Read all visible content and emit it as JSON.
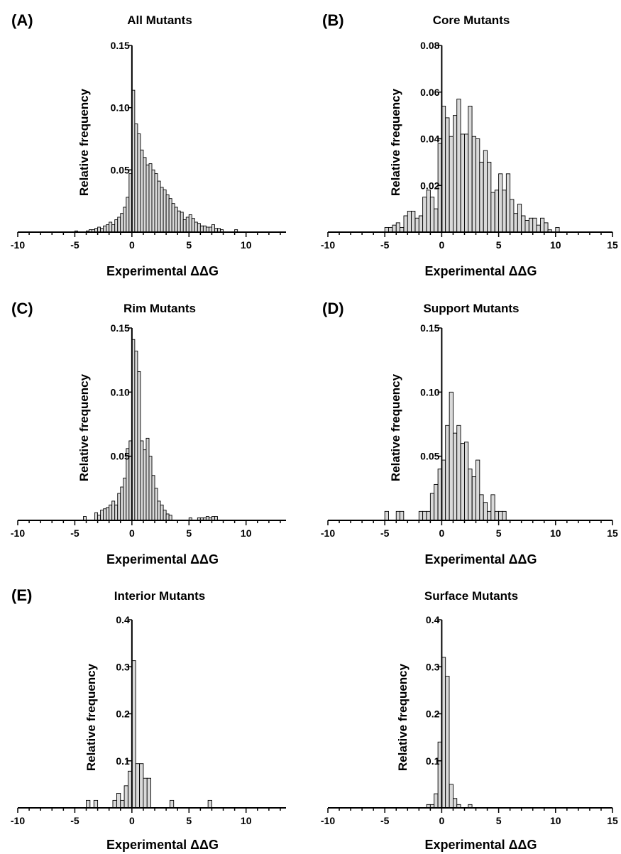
{
  "chart_data": [
    {
      "type": "bar",
      "panel_label": "(A)",
      "title": "All Mutants",
      "xlabel": "Experimental ΔΔG",
      "ylabel": "Relative frequency",
      "xlim": [
        -10,
        13.5
      ],
      "ylim": [
        0,
        0.15
      ],
      "xticks": [
        -10,
        -5,
        0,
        5,
        10
      ],
      "xtick_labels": [
        "-10",
        "-5",
        "0",
        "5",
        "10"
      ],
      "yticks": [
        0.05,
        0.1,
        0.15
      ],
      "ytick_labels": [
        "0.05",
        "0.10",
        "0.15"
      ],
      "bin_width": 0.25,
      "bins": [
        [
          -5,
          0.001
        ],
        [
          -4,
          0.001
        ],
        [
          -3.75,
          0.002
        ],
        [
          -3.5,
          0.002
        ],
        [
          -3.25,
          0.003
        ],
        [
          -3,
          0.004
        ],
        [
          -2.75,
          0.003
        ],
        [
          -2.5,
          0.005
        ],
        [
          -2.25,
          0.006
        ],
        [
          -2,
          0.008
        ],
        [
          -1.75,
          0.006
        ],
        [
          -1.5,
          0.01
        ],
        [
          -1.25,
          0.012
        ],
        [
          -1,
          0.015
        ],
        [
          -0.75,
          0.02
        ],
        [
          -0.5,
          0.028
        ],
        [
          -0.25,
          0.047
        ],
        [
          0,
          0.114
        ],
        [
          0.25,
          0.087
        ],
        [
          0.5,
          0.079
        ],
        [
          0.75,
          0.066
        ],
        [
          1,
          0.06
        ],
        [
          1.25,
          0.054
        ],
        [
          1.5,
          0.055
        ],
        [
          1.75,
          0.05
        ],
        [
          2,
          0.047
        ],
        [
          2.25,
          0.041
        ],
        [
          2.5,
          0.036
        ],
        [
          2.75,
          0.034
        ],
        [
          3,
          0.03
        ],
        [
          3.25,
          0.027
        ],
        [
          3.5,
          0.023
        ],
        [
          3.75,
          0.02
        ],
        [
          4,
          0.017
        ],
        [
          4.25,
          0.016
        ],
        [
          4.5,
          0.01
        ],
        [
          4.75,
          0.012
        ],
        [
          5,
          0.014
        ],
        [
          5.25,
          0.011
        ],
        [
          5.5,
          0.008
        ],
        [
          5.75,
          0.007
        ],
        [
          6,
          0.005
        ],
        [
          6.25,
          0.005
        ],
        [
          6.5,
          0.004
        ],
        [
          6.75,
          0.004
        ],
        [
          7,
          0.006
        ],
        [
          7.25,
          0.003
        ],
        [
          7.5,
          0.003
        ],
        [
          7.75,
          0.002
        ],
        [
          9,
          0.002
        ]
      ]
    },
    {
      "type": "bar",
      "panel_label": "(B)",
      "title": "Core Mutants",
      "xlabel": "Experimental ΔΔG",
      "ylabel": "Relative frequency",
      "xlim": [
        -10,
        15
      ],
      "ylim": [
        0,
        0.08
      ],
      "xticks": [
        -10,
        -5,
        0,
        5,
        10,
        15
      ],
      "xtick_labels": [
        "-10",
        "-5",
        "0",
        "5",
        "10",
        "15"
      ],
      "yticks": [
        0.02,
        0.04,
        0.06,
        0.08
      ],
      "ytick_labels": [
        "0.02",
        "0.04",
        "0.06",
        "0.08"
      ],
      "bin_width": 0.33,
      "bins": [
        [
          -5,
          0.002
        ],
        [
          -4.67,
          0.002
        ],
        [
          -4.33,
          0.003
        ],
        [
          -4,
          0.004
        ],
        [
          -3.67,
          0.002
        ],
        [
          -3.33,
          0.007
        ],
        [
          -3,
          0.009
        ],
        [
          -2.67,
          0.009
        ],
        [
          -2.33,
          0.006
        ],
        [
          -2,
          0.007
        ],
        [
          -1.67,
          0.015
        ],
        [
          -1.33,
          0.018
        ],
        [
          -1,
          0.015
        ],
        [
          -0.67,
          0.01
        ],
        [
          -0.33,
          0.038
        ],
        [
          0,
          0.054
        ],
        [
          0.33,
          0.049
        ],
        [
          0.67,
          0.041
        ],
        [
          1,
          0.05
        ],
        [
          1.33,
          0.057
        ],
        [
          1.67,
          0.042
        ],
        [
          2,
          0.042
        ],
        [
          2.33,
          0.054
        ],
        [
          2.67,
          0.041
        ],
        [
          3,
          0.04
        ],
        [
          3.33,
          0.03
        ],
        [
          3.67,
          0.035
        ],
        [
          4,
          0.03
        ],
        [
          4.33,
          0.017
        ],
        [
          4.67,
          0.018
        ],
        [
          5,
          0.025
        ],
        [
          5.33,
          0.018
        ],
        [
          5.67,
          0.025
        ],
        [
          6,
          0.014
        ],
        [
          6.33,
          0.008
        ],
        [
          6.67,
          0.012
        ],
        [
          7,
          0.007
        ],
        [
          7.33,
          0.005
        ],
        [
          7.67,
          0.006
        ],
        [
          8,
          0.006
        ],
        [
          8.33,
          0.003
        ],
        [
          8.67,
          0.006
        ],
        [
          9,
          0.004
        ],
        [
          9.33,
          0.001
        ],
        [
          10,
          0.002
        ]
      ]
    },
    {
      "type": "bar",
      "panel_label": "(C)",
      "title": "Rim Mutants",
      "xlabel": "Experimental ΔΔG",
      "ylabel": "Relative frequency",
      "xlim": [
        -10,
        13.5
      ],
      "ylim": [
        0,
        0.15
      ],
      "xticks": [
        -10,
        -5,
        0,
        5,
        10
      ],
      "xtick_labels": [
        "-10",
        "-5",
        "0",
        "5",
        "10"
      ],
      "yticks": [
        0.05,
        0.1,
        0.15
      ],
      "ytick_labels": [
        "0.05",
        "0.10",
        "0.15"
      ],
      "bin_width": 0.25,
      "bins": [
        [
          -4.25,
          0.003
        ],
        [
          -3.25,
          0.006
        ],
        [
          -3,
          0.004
        ],
        [
          -2.75,
          0.008
        ],
        [
          -2.5,
          0.009
        ],
        [
          -2.25,
          0.01
        ],
        [
          -2,
          0.012
        ],
        [
          -1.75,
          0.015
        ],
        [
          -1.5,
          0.012
        ],
        [
          -1.25,
          0.021
        ],
        [
          -1,
          0.026
        ],
        [
          -0.75,
          0.033
        ],
        [
          -0.5,
          0.056
        ],
        [
          -0.25,
          0.062
        ],
        [
          0,
          0.141
        ],
        [
          0.25,
          0.132
        ],
        [
          0.5,
          0.116
        ],
        [
          0.75,
          0.062
        ],
        [
          1,
          0.055
        ],
        [
          1.25,
          0.064
        ],
        [
          1.5,
          0.05
        ],
        [
          1.75,
          0.035
        ],
        [
          2,
          0.025
        ],
        [
          2.25,
          0.015
        ],
        [
          2.5,
          0.012
        ],
        [
          2.75,
          0.008
        ],
        [
          3,
          0.005
        ],
        [
          3.25,
          0.004
        ],
        [
          5,
          0.002
        ],
        [
          5.75,
          0.002
        ],
        [
          6,
          0.002
        ],
        [
          6.25,
          0.002
        ],
        [
          6.5,
          0.003
        ],
        [
          6.75,
          0.002
        ],
        [
          7,
          0.003
        ],
        [
          7.25,
          0.003
        ]
      ]
    },
    {
      "type": "bar",
      "panel_label": "(D)",
      "title": "Support Mutants",
      "xlabel": "Experimental ΔΔG",
      "ylabel": "Relative frequency",
      "xlim": [
        -10,
        15
      ],
      "ylim": [
        0,
        0.15
      ],
      "xticks": [
        -10,
        -5,
        0,
        5,
        10,
        15
      ],
      "xtick_labels": [
        "-10",
        "-5",
        "0",
        "5",
        "10",
        "15"
      ],
      "yticks": [
        0.05,
        0.1,
        0.15
      ],
      "ytick_labels": [
        "0.05",
        "0.10",
        "0.15"
      ],
      "bin_width": 0.33,
      "bins": [
        [
          -5,
          0.007
        ],
        [
          -4,
          0.007
        ],
        [
          -3.67,
          0.007
        ],
        [
          -2,
          0.007
        ],
        [
          -1.67,
          0.007
        ],
        [
          -1.33,
          0.007
        ],
        [
          -1,
          0.021
        ],
        [
          -0.67,
          0.028
        ],
        [
          -0.33,
          0.04
        ],
        [
          0,
          0.047
        ],
        [
          0.33,
          0.074
        ],
        [
          0.67,
          0.1
        ],
        [
          1,
          0.068
        ],
        [
          1.33,
          0.074
        ],
        [
          1.67,
          0.06
        ],
        [
          2,
          0.061
        ],
        [
          2.33,
          0.04
        ],
        [
          2.67,
          0.034
        ],
        [
          3,
          0.047
        ],
        [
          3.33,
          0.02
        ],
        [
          3.67,
          0.014
        ],
        [
          4,
          0.007
        ],
        [
          4.33,
          0.02
        ],
        [
          4.67,
          0.007
        ],
        [
          5,
          0.007
        ],
        [
          5.33,
          0.007
        ]
      ]
    },
    {
      "type": "bar",
      "panel_label": "(E)",
      "title": "Interior Mutants",
      "xlabel": "Experimental ΔΔG",
      "ylabel": "Relative frequency",
      "xlim": [
        -10,
        13.5
      ],
      "ylim": [
        0,
        0.4
      ],
      "xticks": [
        -10,
        -5,
        0,
        5,
        10
      ],
      "xtick_labels": [
        "-10",
        "-5",
        "0",
        "5",
        "10"
      ],
      "yticks": [
        0.1,
        0.2,
        0.3,
        0.4
      ],
      "ytick_labels": [
        "0.1",
        "0.2",
        "0.3",
        "0.4"
      ],
      "bin_width": 0.33,
      "bins": [
        [
          -4,
          0.016
        ],
        [
          -3.33,
          0.016
        ],
        [
          -1.67,
          0.016
        ],
        [
          -1.33,
          0.031
        ],
        [
          -1,
          0.016
        ],
        [
          -0.67,
          0.047
        ],
        [
          -0.33,
          0.078
        ],
        [
          0,
          0.313
        ],
        [
          0.33,
          0.094
        ],
        [
          0.67,
          0.094
        ],
        [
          1,
          0.063
        ],
        [
          1.33,
          0.063
        ],
        [
          3.33,
          0.016
        ],
        [
          6.67,
          0.016
        ]
      ]
    },
    {
      "type": "bar",
      "panel_label": "",
      "title": "Surface Mutants",
      "xlabel": "Experimental ΔΔG",
      "ylabel": "Relative frequency",
      "xlim": [
        -10,
        15
      ],
      "ylim": [
        0,
        0.4
      ],
      "xticks": [
        -10,
        -5,
        0,
        5,
        10,
        15
      ],
      "xtick_labels": [
        "-10",
        "-5",
        "0",
        "5",
        "10",
        "15"
      ],
      "yticks": [
        0.1,
        0.2,
        0.3,
        0.4
      ],
      "ytick_labels": [
        "0.1",
        "0.2",
        "0.3",
        "0.4"
      ],
      "bin_width": 0.33,
      "bins": [
        [
          -1.33,
          0.007
        ],
        [
          -1,
          0.007
        ],
        [
          -0.67,
          0.03
        ],
        [
          -0.33,
          0.14
        ],
        [
          0,
          0.32
        ],
        [
          0.33,
          0.28
        ],
        [
          0.67,
          0.05
        ],
        [
          1,
          0.02
        ],
        [
          1.33,
          0.007
        ],
        [
          2.33,
          0.007
        ]
      ]
    }
  ]
}
